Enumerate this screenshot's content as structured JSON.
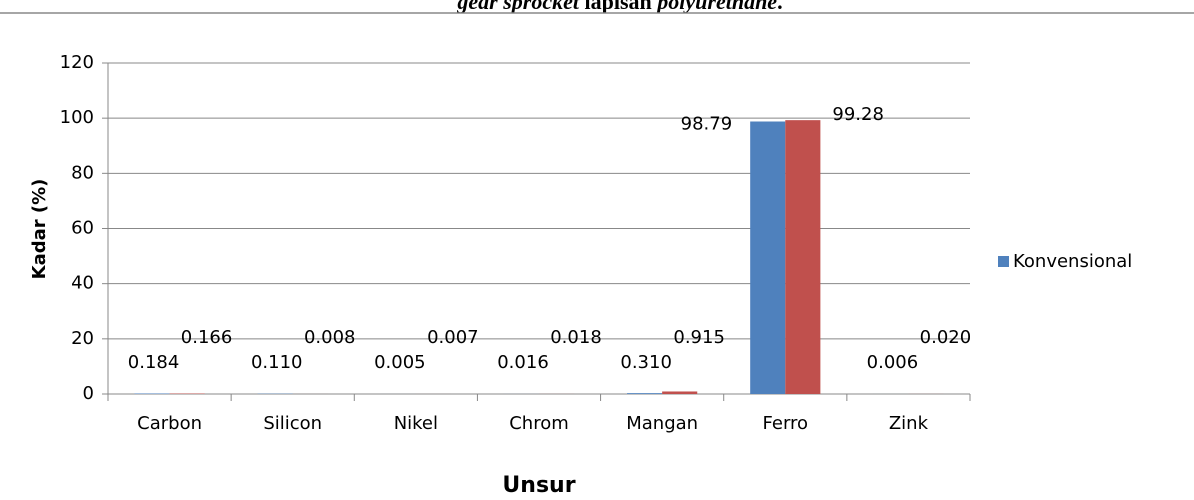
{
  "caption": {
    "part1": "gear sprocket",
    "part2": "lapisan",
    "part3": "polyurethane",
    "part4": "."
  },
  "chart_data": {
    "type": "bar",
    "categories": [
      "Carbon",
      "Silicon",
      "Nikel",
      "Chrom",
      "Mangan",
      "Ferro",
      "Zink"
    ],
    "series": [
      {
        "name": "Konvensional",
        "color": "#4f81bd",
        "values": [
          0.184,
          0.11,
          0.005,
          0.016,
          0.31,
          98.79,
          0.006
        ],
        "value_labels": [
          "0.184",
          "0.110",
          "0.005",
          "0.016",
          "0.310",
          "98.79",
          "0.006"
        ]
      },
      {
        "color": "#c0504d",
        "values": [
          0.166,
          0.008,
          0.007,
          0.018,
          0.915,
          99.28,
          0.02
        ],
        "value_labels": [
          "0.166",
          "0.008",
          "0.007",
          "0.018",
          "0.915",
          "99.28",
          "0.020"
        ]
      }
    ],
    "ylim": [
      0,
      120
    ],
    "yticks": [
      0,
      20,
      40,
      60,
      80,
      100,
      120
    ],
    "grid": true,
    "y_label": "Kadar (%)",
    "x_label": "Unsur",
    "legend": "right"
  }
}
